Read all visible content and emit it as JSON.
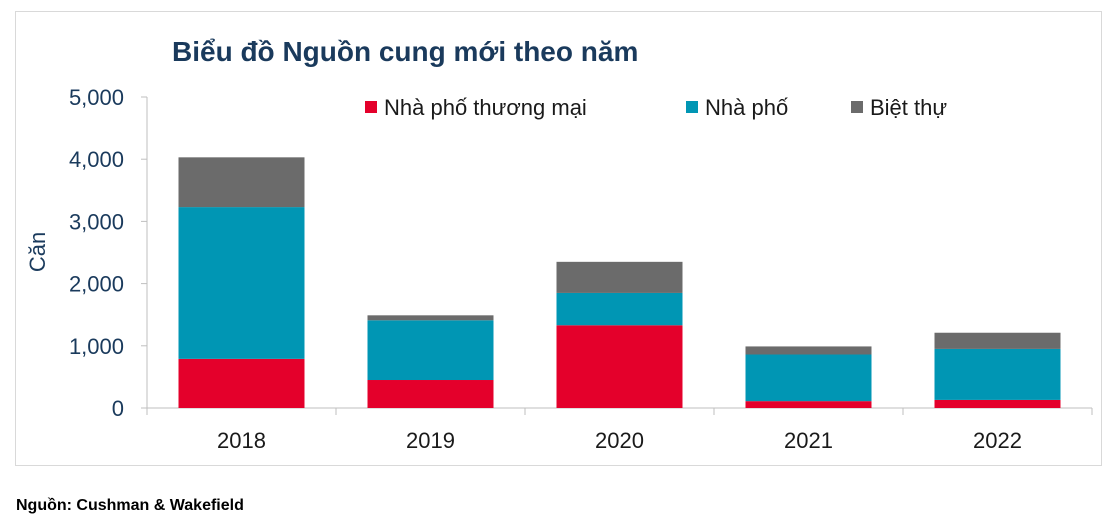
{
  "chart_data": {
    "type": "bar",
    "stacked": true,
    "title": "Biểu đồ Nguồn cung mới theo năm",
    "ylabel": "Căn",
    "xlabel": "",
    "ylim": [
      0,
      5000
    ],
    "yticks": [
      "0",
      "1,000",
      "2,000",
      "3,000",
      "4,000",
      "5,000"
    ],
    "categories": [
      "2018",
      "2019",
      "2020",
      "2021",
      "2022"
    ],
    "series": [
      {
        "name": "Nhà phố thương mại",
        "color": "#e4002b",
        "values": [
          790,
          450,
          1330,
          110,
          130
        ]
      },
      {
        "name": "Nhà phố",
        "color": "#0096b4",
        "values": [
          2440,
          960,
          520,
          750,
          820
        ]
      },
      {
        "name": "Biệt thự",
        "color": "#6b6b6b",
        "values": [
          800,
          80,
          500,
          130,
          260
        ]
      }
    ],
    "legend_position": "top",
    "grid": false
  },
  "source_note": "Nguồn: Cushman & Wakefield"
}
